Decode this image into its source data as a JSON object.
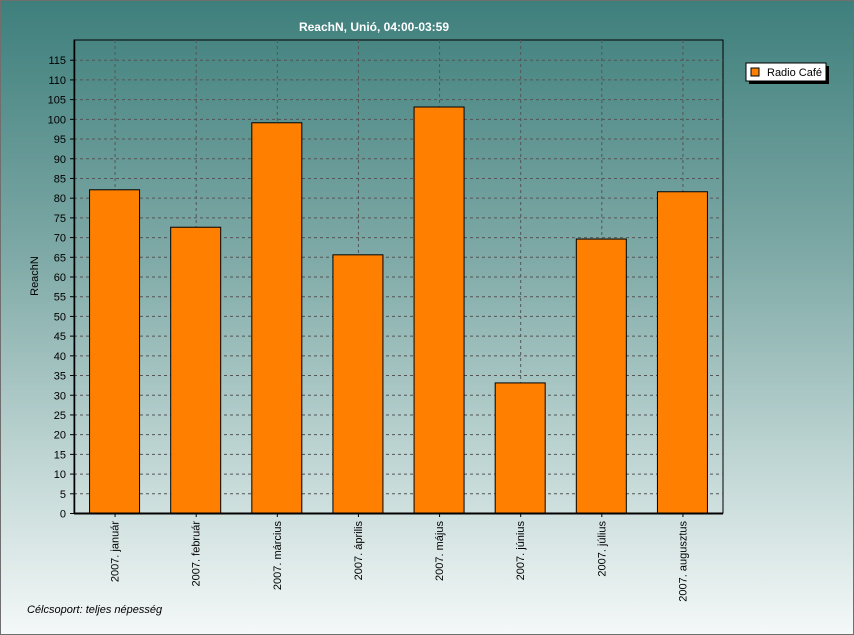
{
  "chart_data": {
    "type": "bar",
    "title": "ReachN, Unió, 04:00-03:59",
    "ylabel": "ReachN",
    "xlabel": "",
    "ylim": [
      0,
      120
    ],
    "yticks": [
      0,
      5,
      10,
      15,
      20,
      25,
      30,
      35,
      40,
      45,
      50,
      55,
      60,
      65,
      70,
      75,
      80,
      85,
      90,
      95,
      100,
      105,
      110,
      115
    ],
    "categories": [
      "2007. január",
      "2007. február",
      "2007. március",
      "2007. április",
      "2007. május",
      "2007. június",
      "2007. július",
      "2007. augusztus"
    ],
    "series": [
      {
        "name": "Radio Café",
        "color": "#ff8000",
        "values": [
          82,
          72.5,
          99,
          65.5,
          103,
          33,
          69.5,
          81.5
        ]
      }
    ],
    "grid": true,
    "legend_position": "right"
  },
  "footnote": "Célcsoport: teljes népesség",
  "colors": {
    "bar": "#ff8000",
    "plot_bg": "#ffffff00",
    "grid": "#555555"
  }
}
